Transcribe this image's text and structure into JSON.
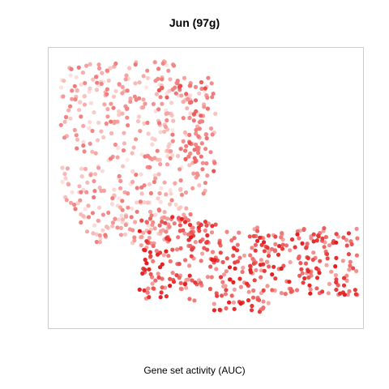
{
  "chart_data": {
    "type": "scatter",
    "title": "Jun (97g)",
    "xlabel": "Gene set activity (AUC)",
    "ylabel": "",
    "grid": false,
    "legend": "none",
    "color_low": "#fde8e4",
    "color_high": "#e41a1c",
    "note_points": "Embedding scatter without axis ticks; point positions are generated procedurally within the depicted regions.",
    "regions": [
      {
        "name": "upper-left lobe",
        "x_range": [
          0.04,
          0.53
        ],
        "y_range": [
          0.3,
          0.95
        ],
        "activity_range": [
          0.0,
          0.55
        ],
        "count": 460
      },
      {
        "name": "right arm",
        "x_range": [
          0.29,
          0.98
        ],
        "y_range": [
          0.05,
          0.4
        ],
        "activity_range": [
          0.3,
          1.0
        ],
        "count": 430
      },
      {
        "name": "upper-right ridge",
        "x_range": [
          0.34,
          0.53
        ],
        "y_range": [
          0.55,
          0.9
        ],
        "activity_range": [
          0.35,
          0.75
        ],
        "count": 60
      }
    ]
  }
}
